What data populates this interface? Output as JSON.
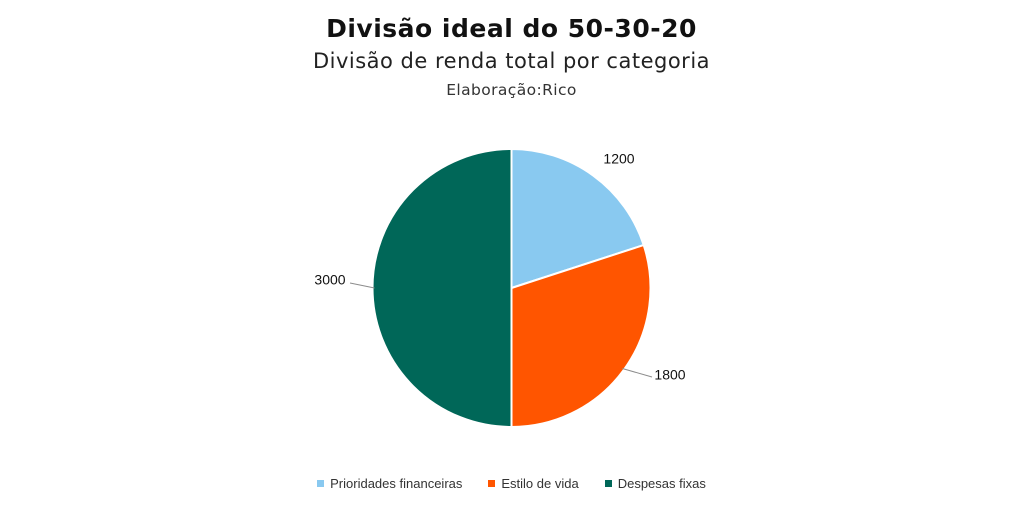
{
  "chart_data": {
    "type": "pie",
    "title": "Divisão ideal do 50-30-20",
    "subtitle": "Divisão de renda total por categoria",
    "credit": "Elaboração:Rico",
    "categories": [
      "Prioridades financeiras",
      "Estilo de vida",
      "Despesas fixas"
    ],
    "values": [
      1200,
      1800,
      3000
    ],
    "data_labels": [
      "1200",
      "1800",
      "3000"
    ],
    "colors": [
      "#89c9f0",
      "#ff5500",
      "#006758"
    ],
    "start_angle_deg": 0,
    "direction": "clockwise",
    "legend_position": "bottom"
  }
}
